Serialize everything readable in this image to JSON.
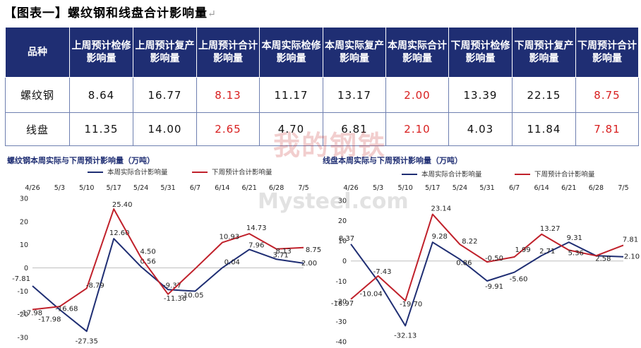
{
  "title": "【图表一】螺纹钢和线盘合计影响量",
  "title_mark": "↵",
  "table": {
    "headers": [
      "品种",
      "上周预计检修影响量",
      "上周预计复产影响量",
      "上周预计合计影响量",
      "本周实际检修影响量",
      "本周实际复产影响量",
      "本周实际合计影响量",
      "下周预计检修影响量",
      "下周预计复产影响量",
      "下周预计合计影响量"
    ],
    "rows": [
      {
        "name": "螺纹钢",
        "values": [
          "8.64",
          "16.77",
          "8.13",
          "11.17",
          "13.17",
          "2.00",
          "13.39",
          "22.15",
          "8.75"
        ]
      },
      {
        "name": "线盘",
        "values": [
          "11.35",
          "14.00",
          "2.65",
          "4.70",
          "6.81",
          "2.10",
          "4.03",
          "11.84",
          "7.81"
        ]
      }
    ],
    "highlight_color": "#d81e1e",
    "header_bg": "#1f2e73"
  },
  "watermark": {
    "cn": "我的钢铁",
    "en": "Mysteel.com"
  },
  "chart_data": [
    {
      "type": "line",
      "title": "螺纹钢本周实际与下周预计影响量（万吨）",
      "categories": [
        "4/26",
        "5/3",
        "5/10",
        "5/17",
        "5/24",
        "5/31",
        "6/7",
        "6/14",
        "6/21",
        "6/28",
        "7/5"
      ],
      "ylim": [
        -30,
        30
      ],
      "yticks": [
        -30,
        -20,
        -10,
        0,
        10,
        20,
        30
      ],
      "grid": false,
      "legend_position": "top",
      "series": [
        {
          "name": "本周实际合计影响量",
          "color": "#1f2e73",
          "values": [
            -7.81,
            -17.98,
            -27.35,
            12.6,
            0.56,
            -9.37,
            -10.05,
            0.04,
            7.96,
            3.71,
            2.0
          ],
          "labels": [
            "-7.81",
            "-17.98",
            "-27.35",
            "12.60",
            "0.56",
            "-9.37",
            "-10.05",
            "0.04",
            "7.96",
            "3.71",
            "2.00"
          ]
        },
        {
          "name": "下周预计合计影响量",
          "color": "#c0212b",
          "values": [
            -17.98,
            -16.68,
            -8.79,
            25.4,
            4.5,
            -11.36,
            -0.37,
            10.93,
            14.73,
            8.13,
            8.75
          ],
          "labels": [
            "-17.98",
            "-16.68",
            "-8.79",
            "25.40",
            "4.50",
            "-11.36",
            "",
            "10.93",
            "14.73",
            "8.13",
            "8.75"
          ]
        }
      ]
    },
    {
      "type": "line",
      "title": "线盘本周实际与下周预计影响量（万吨）",
      "categories": [
        "4/26",
        "5/3",
        "5/10",
        "5/17",
        "5/24",
        "5/31",
        "6/7",
        "6/14",
        "6/21",
        "6/28",
        "7/5"
      ],
      "ylim": [
        -40,
        30
      ],
      "yticks": [
        -40,
        -30,
        -20,
        -10,
        0,
        10,
        20,
        30
      ],
      "grid": false,
      "legend_position": "top",
      "series": [
        {
          "name": "本周实际合计影响量",
          "color": "#1f2e73",
          "values": [
            8.37,
            -10.04,
            -32.13,
            9.28,
            0.86,
            -9.91,
            -5.6,
            2.71,
            9.31,
            2.58,
            2.1
          ],
          "labels": [
            "8.37",
            "-10.04",
            "-32.13",
            "9.28",
            "0.86",
            "-9.91",
            "-5.60",
            "2.71",
            "9.31",
            "2.58",
            "2.10"
          ]
        },
        {
          "name": "下周预计合计影响量",
          "color": "#c0212b",
          "values": [
            -18.97,
            -7.43,
            -19.7,
            23.14,
            8.22,
            -0.5,
            1.99,
            13.27,
            5.36,
            2.58,
            7.81
          ],
          "labels": [
            "-18.97",
            "-7.43",
            "-19.70",
            "23.14",
            "8.22",
            "-0.50",
            "1.99",
            "13.27",
            "5.36",
            "",
            "7.81"
          ]
        }
      ]
    }
  ]
}
